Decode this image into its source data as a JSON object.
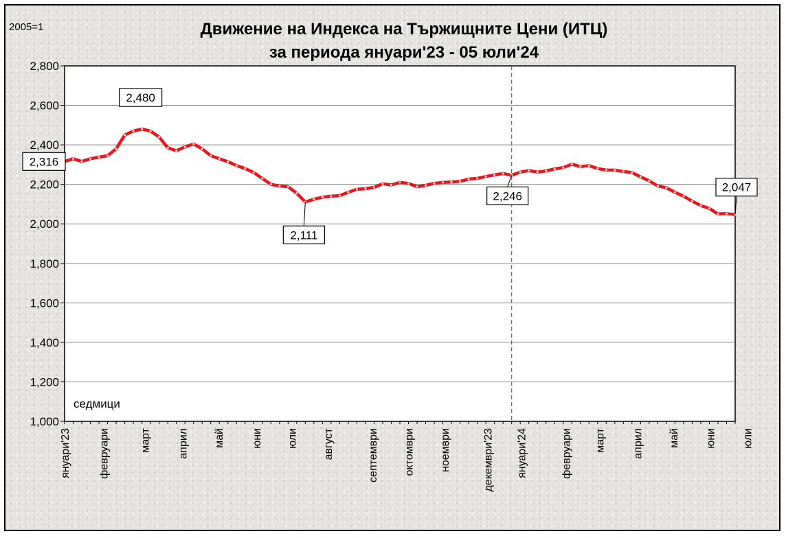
{
  "chart_data": {
    "type": "line",
    "title": "Движение на Индекса на Тържищните Цени (ИТЦ)",
    "subtitle": "за периода януари'23  - 05 юли'24",
    "index_label": "2005=1",
    "xlabel": "седмици",
    "ylim": [
      1000,
      2800
    ],
    "yticks": [
      "1,000",
      "1,200",
      "1,400",
      "1,600",
      "1,800",
      "2,000",
      "2,200",
      "2,400",
      "2,600",
      "2,800"
    ],
    "ytick_values": [
      1000,
      1200,
      1400,
      1600,
      1800,
      2000,
      2200,
      2400,
      2600,
      2800
    ],
    "grid": true,
    "series_color": "#e8161b",
    "months": [
      {
        "label": "януари'23",
        "week": 0
      },
      {
        "label": "февруари",
        "week": 4.5
      },
      {
        "label": "март",
        "week": 9.3
      },
      {
        "label": "април",
        "week": 13.7
      },
      {
        "label": "май",
        "week": 17.9
      },
      {
        "label": "юни",
        "week": 22.3
      },
      {
        "label": "юли",
        "week": 26.4
      },
      {
        "label": "август",
        "week": 30.6
      },
      {
        "label": "септември",
        "week": 35.8
      },
      {
        "label": "октомври",
        "week": 40
      },
      {
        "label": "ноември",
        "week": 44.2
      },
      {
        "label": "декември'23",
        "week": 49.2
      },
      {
        "label": "януари'24",
        "week": 53.1
      },
      {
        "label": "февруари",
        "week": 58.3
      },
      {
        "label": "март",
        "week": 62.2
      },
      {
        "label": "април",
        "week": 66.6
      },
      {
        "label": "май",
        "week": 70.8
      },
      {
        "label": "юни",
        "week": 75.1
      },
      {
        "label": "юли",
        "week": 79.4
      }
    ],
    "values": [
      2316,
      2330,
      2316,
      2330,
      2338,
      2345,
      2380,
      2450,
      2470,
      2480,
      2470,
      2440,
      2385,
      2370,
      2390,
      2405,
      2380,
      2345,
      2330,
      2315,
      2295,
      2280,
      2260,
      2230,
      2200,
      2192,
      2188,
      2155,
      2111,
      2125,
      2135,
      2140,
      2143,
      2160,
      2175,
      2178,
      2185,
      2203,
      2197,
      2210,
      2205,
      2188,
      2195,
      2205,
      2210,
      2212,
      2215,
      2227,
      2230,
      2240,
      2248,
      2255,
      2246,
      2262,
      2270,
      2262,
      2268,
      2278,
      2285,
      2302,
      2290,
      2295,
      2280,
      2272,
      2272,
      2265,
      2260,
      2238,
      2218,
      2192,
      2183,
      2160,
      2140,
      2115,
      2093,
      2078,
      2050,
      2052,
      2047
    ],
    "divider_week": 52,
    "data_labels": [
      {
        "week": 0,
        "value": 2316,
        "text": "2,316"
      },
      {
        "week": 9,
        "value": 2480,
        "text": "2,480"
      },
      {
        "week": 28,
        "value": 2111,
        "text": "2,111"
      },
      {
        "week": 52,
        "value": 2246,
        "text": "2,246"
      },
      {
        "week": 78,
        "value": 2047,
        "text": "2,047"
      }
    ]
  }
}
